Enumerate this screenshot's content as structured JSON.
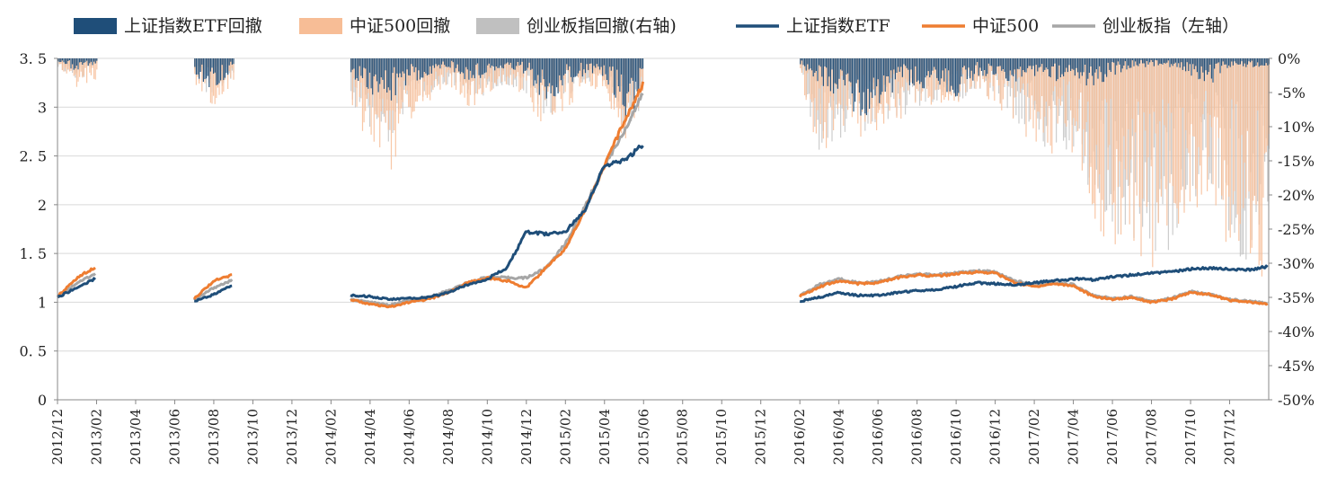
{
  "chart_data": {
    "type": "line",
    "legend": {
      "items": [
        {
          "label": "上证指数ETF回撤",
          "kind": "bar",
          "color": "#1f4e79"
        },
        {
          "label": "中证500回撤",
          "kind": "bar",
          "color": "#f7bd96"
        },
        {
          "label": "创业板指回撤(右轴)",
          "kind": "bar",
          "color": "#c0c0c0"
        },
        {
          "label": "上证指数ETF",
          "kind": "line",
          "color": "#1f4e79"
        },
        {
          "label": "中证500",
          "kind": "line",
          "color": "#ee7d31"
        },
        {
          "label": "创业板指（左轴）",
          "kind": "line",
          "color": "#a6a6a6"
        }
      ],
      "position": "top"
    },
    "left_axis": {
      "range": [
        0,
        3.5
      ],
      "ticks": [
        {
          "value": 0,
          "label": "0"
        },
        {
          "value": 0.5,
          "label": "0. 5"
        },
        {
          "value": 1,
          "label": "1"
        },
        {
          "value": 1.5,
          "label": "1. 5"
        },
        {
          "value": 2,
          "label": "2"
        },
        {
          "value": 2.5,
          "label": "2. 5"
        },
        {
          "value": 3,
          "label": "3"
        },
        {
          "value": 3.5,
          "label": "3. 5"
        }
      ]
    },
    "right_axis": {
      "range": [
        -50,
        0
      ],
      "ticks": [
        {
          "value": 0,
          "label": "0%"
        },
        {
          "value": -5,
          "label": "-5%"
        },
        {
          "value": -10,
          "label": "-10%"
        },
        {
          "value": -15,
          "label": "-15%"
        },
        {
          "value": -20,
          "label": "-20%"
        },
        {
          "value": -25,
          "label": "-25%"
        },
        {
          "value": -30,
          "label": "-30%"
        },
        {
          "value": -35,
          "label": "-35%"
        },
        {
          "value": -40,
          "label": "-40%"
        },
        {
          "value": -45,
          "label": "-45%"
        },
        {
          "value": -50,
          "label": "-50%"
        }
      ]
    },
    "x_axis": {
      "range_months": [
        "2012/12",
        "2018/02"
      ],
      "tick_labels": [
        "2012/12",
        "2013/02",
        "2013/04",
        "2013/06",
        "2013/08",
        "2013/10",
        "2013/12",
        "2014/02",
        "2014/04",
        "2014/06",
        "2014/08",
        "2014/10",
        "2014/12",
        "2015/02",
        "2015/04",
        "2015/06",
        "2015/08",
        "2015/10",
        "2015/12",
        "2016/02",
        "2016/04",
        "2016/06",
        "2016/08",
        "2016/10",
        "2016/12",
        "2017/02",
        "2017/04",
        "2017/06",
        "2017/08",
        "2017/10",
        "2017/12"
      ]
    },
    "grid": "horizontal",
    "segments": [
      {
        "x": [
          "2012/12",
          "2013/01",
          "2013/02"
        ],
        "lines": {
          "shanghai": [
            1.05,
            1.15,
            1.25
          ],
          "zz500": [
            1.06,
            1.25,
            1.37
          ],
          "cyb": [
            1.05,
            1.2,
            1.3
          ]
        },
        "drawdown": {
          "shanghai": [
            -0.5,
            -1.5,
            -1
          ],
          "zz500": [
            -1,
            -3.5,
            -3
          ],
          "cyb": [
            -1,
            -2.5,
            -2
          ]
        }
      },
      {
        "x": [
          "2013/07",
          "2013/08",
          "2013/09"
        ],
        "lines": {
          "shanghai": [
            1.01,
            1.08,
            1.18
          ],
          "zz500": [
            1.04,
            1.22,
            1.28
          ],
          "cyb": [
            1.02,
            1.15,
            1.23
          ]
        },
        "drawdown": {
          "shanghai": [
            -2,
            -4,
            -1
          ],
          "zz500": [
            -3,
            -5.5,
            -3
          ],
          "cyb": [
            -2.5,
            -5,
            -2
          ]
        }
      },
      {
        "x": [
          "2014/03",
          "2014/04",
          "2014/05",
          "2014/06",
          "2014/07",
          "2014/08",
          "2014/09",
          "2014/10",
          "2014/11",
          "2014/12",
          "2015/01",
          "2015/02",
          "2015/03",
          "2015/04",
          "2015/05",
          "2015/06"
        ],
        "lines": {
          "shanghai": [
            1.07,
            1.06,
            1.03,
            1.04,
            1.05,
            1.1,
            1.18,
            1.24,
            1.35,
            1.72,
            1.7,
            1.72,
            1.95,
            2.4,
            2.45,
            2.62
          ],
          "zz500": [
            1.03,
            0.98,
            0.95,
            1.0,
            1.03,
            1.1,
            1.2,
            1.25,
            1.22,
            1.15,
            1.35,
            1.55,
            1.95,
            2.4,
            2.85,
            3.25
          ],
          "cyb": [
            1.03,
            1.0,
            0.97,
            1.02,
            1.05,
            1.12,
            1.2,
            1.26,
            1.25,
            1.25,
            1.35,
            1.6,
            1.98,
            2.4,
            2.75,
            3.15
          ]
        },
        "drawdown": {
          "shanghai": [
            -2,
            -4,
            -5,
            -3,
            -2,
            -1,
            -3,
            -2,
            -1,
            -2,
            -6,
            -3,
            -2,
            -2,
            -8,
            -4
          ],
          "zz500": [
            -6,
            -10,
            -13,
            -7,
            -5,
            -3,
            -6,
            -4,
            -3,
            -5,
            -8,
            -6,
            -3,
            -4,
            -10,
            -5
          ],
          "cyb": [
            -5,
            -8,
            -10,
            -6,
            -4,
            -3,
            -5,
            -4,
            -3,
            -4,
            -7,
            -5,
            -3,
            -3,
            -9,
            -5
          ]
        }
      },
      {
        "x": [
          "2016/02",
          "2016/03",
          "2016/04",
          "2016/05",
          "2016/06",
          "2016/07",
          "2016/08",
          "2016/09",
          "2016/10",
          "2016/11",
          "2016/12",
          "2017/01",
          "2017/02",
          "2017/03",
          "2017/04",
          "2017/05",
          "2017/06",
          "2017/07",
          "2017/08",
          "2017/09",
          "2017/10",
          "2017/11",
          "2017/12",
          "2018/01",
          "2018/02"
        ],
        "lines": {
          "shanghai": [
            1.01,
            1.05,
            1.1,
            1.07,
            1.07,
            1.1,
            1.12,
            1.13,
            1.16,
            1.2,
            1.19,
            1.18,
            1.2,
            1.22,
            1.24,
            1.23,
            1.26,
            1.28,
            1.3,
            1.31,
            1.34,
            1.35,
            1.34,
            1.33,
            1.37
          ],
          "zz500": [
            1.06,
            1.16,
            1.22,
            1.19,
            1.2,
            1.25,
            1.28,
            1.27,
            1.29,
            1.31,
            1.3,
            1.2,
            1.16,
            1.19,
            1.17,
            1.06,
            1.03,
            1.05,
            1.0,
            1.03,
            1.1,
            1.08,
            1.02,
            1.0,
            0.98
          ],
          "cyb": [
            1.07,
            1.18,
            1.24,
            1.2,
            1.21,
            1.26,
            1.29,
            1.28,
            1.3,
            1.32,
            1.31,
            1.22,
            1.18,
            1.2,
            1.18,
            1.07,
            1.04,
            1.06,
            1.01,
            1.04,
            1.11,
            1.08,
            1.03,
            1.01,
            0.99
          ]
        },
        "drawdown": {
          "shanghai": [
            -1,
            -4,
            -5,
            -7,
            -6,
            -3,
            -4,
            -3,
            -5,
            -2,
            -2,
            -3,
            -2,
            -3,
            -2,
            -4,
            -2,
            -1,
            -1,
            -1,
            -2,
            -3,
            -1,
            -1,
            -1
          ],
          "zz500": [
            -2,
            -12,
            -10,
            -9,
            -8,
            -7,
            -6,
            -5,
            -5,
            -4,
            -5,
            -8,
            -10,
            -12,
            -11,
            -18,
            -22,
            -21,
            -26,
            -22,
            -17,
            -19,
            -23,
            -24,
            -25
          ],
          "cyb": [
            -2,
            -11,
            -9,
            -9,
            -8,
            -7,
            -6,
            -5,
            -5,
            -4,
            -5,
            -7,
            -9,
            -11,
            -10,
            -17,
            -21,
            -20,
            -25,
            -21,
            -16,
            -18,
            -22,
            -23,
            -24
          ]
        }
      }
    ]
  }
}
